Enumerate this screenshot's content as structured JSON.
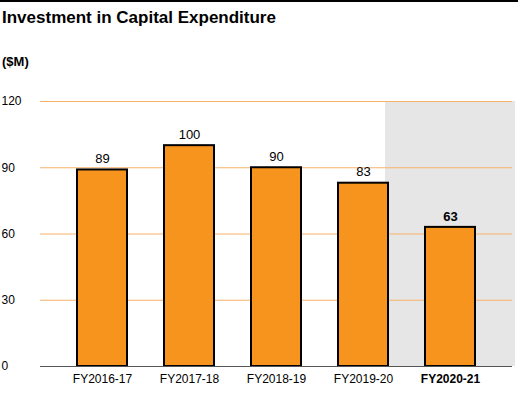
{
  "chart_data": {
    "type": "bar",
    "title": "Investment in Capital Expenditure",
    "y_label": "($M)",
    "categories": [
      "FY2016-17",
      "FY2017-18",
      "FY2018-19",
      "FY2019-20",
      "FY2020-21"
    ],
    "values": [
      89,
      100,
      90,
      83,
      63
    ],
    "color": "#f7941d",
    "ylim": [
      0,
      120
    ],
    "yticks": [
      0,
      30,
      60,
      90,
      120
    ],
    "grid": true,
    "data_labels": true
  }
}
